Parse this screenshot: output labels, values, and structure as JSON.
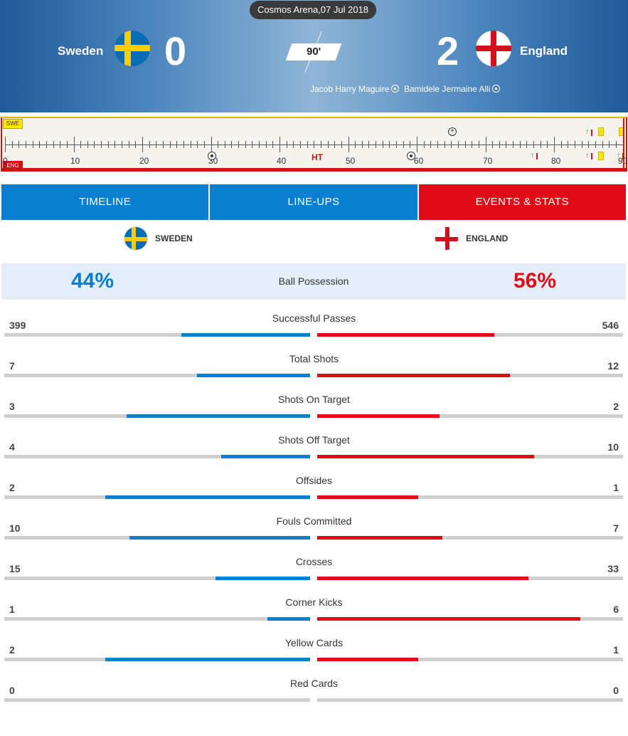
{
  "header": {
    "venue": "Cosmos Arena,07 Jul 2018",
    "home_team": "Sweden",
    "away_team": "England",
    "home_score": "0",
    "away_score": "2",
    "clock": "90'",
    "scorers": [
      "Jacob Harry Maguire",
      "Bamidele Jermaine Alli"
    ]
  },
  "timeline": {
    "home_code": "SWE",
    "away_code": "ENG",
    "ticks": [
      "10",
      "20",
      "30",
      "40",
      "50",
      "60",
      "70",
      "80",
      "90"
    ],
    "ht_label": "HT",
    "start_label": "0"
  },
  "tabs": [
    {
      "label": "TIMELINE"
    },
    {
      "label": "LINE-UPS"
    },
    {
      "label": "EVENTS & STATS"
    }
  ],
  "teams": {
    "home_upper": "SWEDEN",
    "away_upper": "ENGLAND"
  },
  "possession": {
    "label": "Ball Possession",
    "home": "44%",
    "away": "56%"
  },
  "colors": {
    "home_accent": "#0a7fcf",
    "away_accent": "#e10b17",
    "sweden_blue": "#0a6cb6",
    "sweden_yellow": "#fecb00",
    "england_red": "#d0101d"
  },
  "stats": [
    {
      "label": "Successful Passes",
      "home": "399",
      "away": "546",
      "home_frac": 0.42,
      "away_frac": 0.58
    },
    {
      "label": "Total Shots",
      "home": "7",
      "away": "12",
      "home_frac": 0.37,
      "away_frac": 0.63
    },
    {
      "label": "Shots On Target",
      "home": "3",
      "away": "2",
      "home_frac": 0.6,
      "away_frac": 0.4
    },
    {
      "label": "Shots Off Target",
      "home": "4",
      "away": "10",
      "home_frac": 0.29,
      "away_frac": 0.71
    },
    {
      "label": "Offsides",
      "home": "2",
      "away": "1",
      "home_frac": 0.67,
      "away_frac": 0.33
    },
    {
      "label": "Fouls Committed",
      "home": "10",
      "away": "7",
      "home_frac": 0.59,
      "away_frac": 0.41
    },
    {
      "label": "Crosses",
      "home": "15",
      "away": "33",
      "home_frac": 0.31,
      "away_frac": 0.69
    },
    {
      "label": "Corner Kicks",
      "home": "1",
      "away": "6",
      "home_frac": 0.14,
      "away_frac": 0.86
    },
    {
      "label": "Yellow Cards",
      "home": "2",
      "away": "1",
      "home_frac": 0.67,
      "away_frac": 0.33
    },
    {
      "label": "Red Cards",
      "home": "0",
      "away": "0",
      "home_frac": 0,
      "away_frac": 0
    }
  ]
}
